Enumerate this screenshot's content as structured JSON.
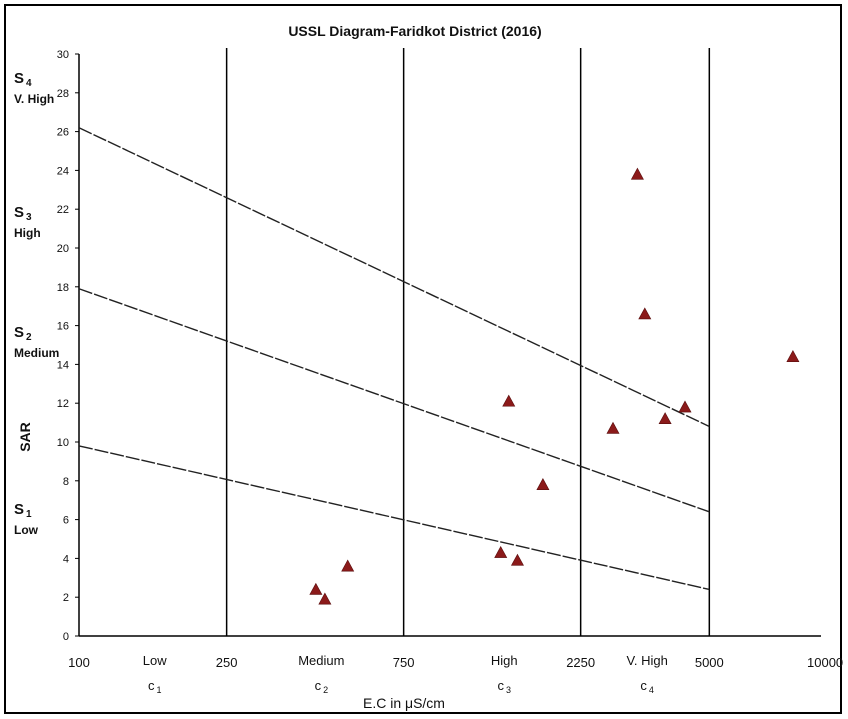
{
  "chart_data": {
    "type": "scatter",
    "title": "USSL Diagram-Faridkot District (2016)",
    "xlabel": "E.C in  μS/cm",
    "ylabel": "SAR",
    "x_scale": "log",
    "xlim": [
      100,
      10000
    ],
    "ylim": [
      0,
      30
    ],
    "x_ticks": [
      "100",
      "250",
      "750",
      "2250",
      "5000",
      "10000"
    ],
    "y_ticks": [
      "0",
      "2",
      "4",
      "6",
      "8",
      "10",
      "12",
      "14",
      "16",
      "18",
      "20",
      "22",
      "24",
      "26",
      "28",
      "30"
    ],
    "vertical_lines_at": [
      250,
      750,
      2250,
      5000
    ],
    "salinity_classes": [
      {
        "label": "Low",
        "code": "c",
        "sub": "1",
        "x": 160
      },
      {
        "label": "Medium",
        "code": "c",
        "sub": "2",
        "x": 450
      },
      {
        "label": "High",
        "code": "c",
        "sub": "3",
        "x": 1400
      },
      {
        "label": "V. High",
        "code": "c",
        "sub": "4",
        "x": 3400
      }
    ],
    "sodium_classes": [
      {
        "code": "S",
        "sub": "4",
        "label": "V. High",
        "y": 28.5
      },
      {
        "code": "S",
        "sub": "3",
        "label": "High",
        "y": 21.6
      },
      {
        "code": "S",
        "sub": "2",
        "label": "Medium",
        "y": 15.4
      },
      {
        "code": "S",
        "sub": "1",
        "label": "Low",
        "y": 6.3
      }
    ],
    "boundary_lines": [
      {
        "points": [
          [
            100,
            26.2
          ],
          [
            5000,
            10.8
          ]
        ]
      },
      {
        "points": [
          [
            100,
            17.9
          ],
          [
            5000,
            6.4
          ]
        ]
      },
      {
        "points": [
          [
            100,
            9.8
          ],
          [
            5000,
            2.4
          ]
        ]
      }
    ],
    "points": [
      {
        "x": 435,
        "y": 2.4
      },
      {
        "x": 460,
        "y": 1.9
      },
      {
        "x": 530,
        "y": 3.6
      },
      {
        "x": 1370,
        "y": 4.3
      },
      {
        "x": 1520,
        "y": 3.9
      },
      {
        "x": 1440,
        "y": 12.1
      },
      {
        "x": 1780,
        "y": 7.8
      },
      {
        "x": 2750,
        "y": 10.7
      },
      {
        "x": 3200,
        "y": 23.8
      },
      {
        "x": 3350,
        "y": 16.6
      },
      {
        "x": 3800,
        "y": 11.2
      },
      {
        "x": 4300,
        "y": 11.8
      },
      {
        "x": 8400,
        "y": 14.4
      }
    ],
    "marker_color": "#8b1a1a",
    "line_color": "#222222",
    "grid": false,
    "legend": "none"
  }
}
